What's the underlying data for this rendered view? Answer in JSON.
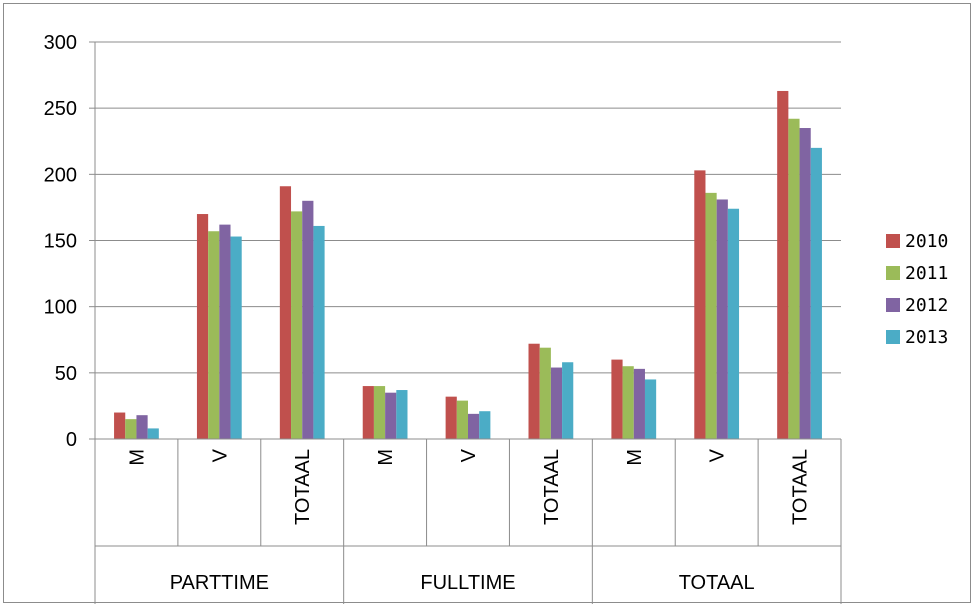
{
  "chart_data": {
    "type": "bar",
    "groups": [
      {
        "label": "PARTTIME",
        "categories": [
          "M",
          "V",
          "TOTAAL"
        ]
      },
      {
        "label": "FULLTIME",
        "categories": [
          "M",
          "V",
          "TOTAAL"
        ]
      },
      {
        "label": "TOTAAL",
        "categories": [
          "M",
          "V",
          "TOTAAL"
        ]
      }
    ],
    "series": [
      {
        "name": "2010",
        "color": "#c0504d",
        "values": [
          20,
          170,
          191,
          40,
          32,
          72,
          60,
          203,
          263
        ]
      },
      {
        "name": "2011",
        "color": "#9bbb59",
        "values": [
          15,
          157,
          172,
          40,
          29,
          69,
          55,
          186,
          242
        ]
      },
      {
        "name": "2012",
        "color": "#8064a2",
        "values": [
          18,
          162,
          180,
          35,
          19,
          54,
          53,
          181,
          235
        ]
      },
      {
        "name": "2013",
        "color": "#4bacc6",
        "values": [
          8,
          153,
          161,
          37,
          21,
          58,
          45,
          174,
          220
        ]
      }
    ],
    "ylim": [
      0,
      300
    ],
    "yticks": [
      "0",
      "50",
      "100",
      "150",
      "200",
      "250",
      "300"
    ],
    "grid": true,
    "legend_position": "right"
  }
}
